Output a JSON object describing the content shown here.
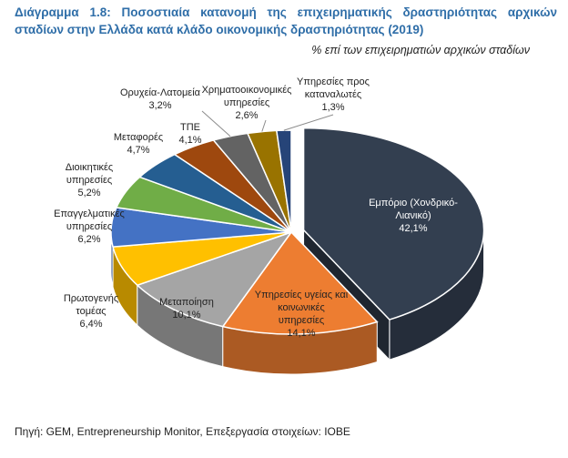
{
  "title": "Διάγραμμα 1.8: Ποσοστιαία κατανομή της επιχειρηματικής δραστηριότητας αρχικών σταδίων στην Ελλάδα κατά κλάδο οικονομικής δραστηριότητας (2019)",
  "subtitle": "% επί των επιχειρηματιών αρχικών σταδίων",
  "source": "Πηγή: GEM, Entrepreneurship Monitor, Επεξεργασία στοιχείων: ΙΟΒΕ",
  "chart_data": {
    "type": "pie",
    "title": "Διάγραμμα 1.8: Ποσοστιαία κατανομή της επιχειρηματικής δραστηριότητας αρχικών σταδίων στην Ελλάδα κατά κλάδο οικονομικής δραστηριότητας (2019)",
    "unit": "%",
    "slices": [
      {
        "label": "Εμπόριο (Χονδρικό-Λιανικό)",
        "lines": [
          "Εμπόριο (Χονδρικό-",
          "Λιανικό)"
        ],
        "value": 42.1,
        "value_text": "42,1%",
        "color": "#333F50",
        "exploded": true,
        "label_color": "#FFFFFF"
      },
      {
        "label": "Υπηρεσίες υγείας και κοινωνικές υπηρεσίες",
        "lines": [
          "Υπηρεσίες υγείας και",
          "κοινωνικές",
          "υπηρεσίες"
        ],
        "value": 14.1,
        "value_text": "14,1%",
        "color": "#ED7D31",
        "exploded": false,
        "label_color": "#222222"
      },
      {
        "label": "Μεταποίηση",
        "lines": [
          "Μεταποίηση"
        ],
        "value": 10.1,
        "value_text": "10,1%",
        "color": "#A5A5A5",
        "exploded": false,
        "label_color": "#222222"
      },
      {
        "label": "Πρωτογενής τομέας",
        "lines": [
          "Πρωτογενής",
          "τομέας"
        ],
        "value": 6.4,
        "value_text": "6,4%",
        "color": "#FFC000",
        "exploded": false,
        "label_color": "#222222"
      },
      {
        "label": "Επαγγελματικές υπηρεσίες",
        "lines": [
          "Επαγγελματικές",
          "υπηρεσίες"
        ],
        "value": 6.2,
        "value_text": "6,2%",
        "color": "#4472C4",
        "exploded": false,
        "label_color": "#222222"
      },
      {
        "label": "Διοικητικές υπηρεσίες",
        "lines": [
          "Διοικητικές",
          "υπηρεσίες"
        ],
        "value": 5.2,
        "value_text": "5,2%",
        "color": "#70AD47",
        "exploded": false,
        "label_color": "#222222"
      },
      {
        "label": "Μεταφορές",
        "lines": [
          "Μεταφορές"
        ],
        "value": 4.7,
        "value_text": "4,7%",
        "color": "#255E91",
        "exploded": false,
        "label_color": "#222222"
      },
      {
        "label": "ΤΠΕ",
        "lines": [
          "ΤΠΕ"
        ],
        "value": 4.1,
        "value_text": "4,1%",
        "color": "#9E480E",
        "exploded": false,
        "label_color": "#222222"
      },
      {
        "label": "Ορυχεία-Λατομεία",
        "lines": [
          "Ορυχεία-Λατομεία"
        ],
        "value": 3.2,
        "value_text": "3,2%",
        "color": "#636363",
        "exploded": false,
        "label_color": "#222222"
      },
      {
        "label": "Χρηματοοικονομικές υπηρεσίες",
        "lines": [
          "Χρηματοοικονομικές",
          "υπηρεσίες"
        ],
        "value": 2.6,
        "value_text": "2,6%",
        "color": "#997300",
        "exploded": false,
        "label_color": "#222222"
      },
      {
        "label": "Υπηρεσίες προς καταναλωτές",
        "lines": [
          "Υπηρεσίες προς",
          "καταναλωτές"
        ],
        "value": 1.3,
        "value_text": "1,3%",
        "color": "#264478",
        "exploded": false,
        "label_color": "#222222"
      }
    ]
  }
}
